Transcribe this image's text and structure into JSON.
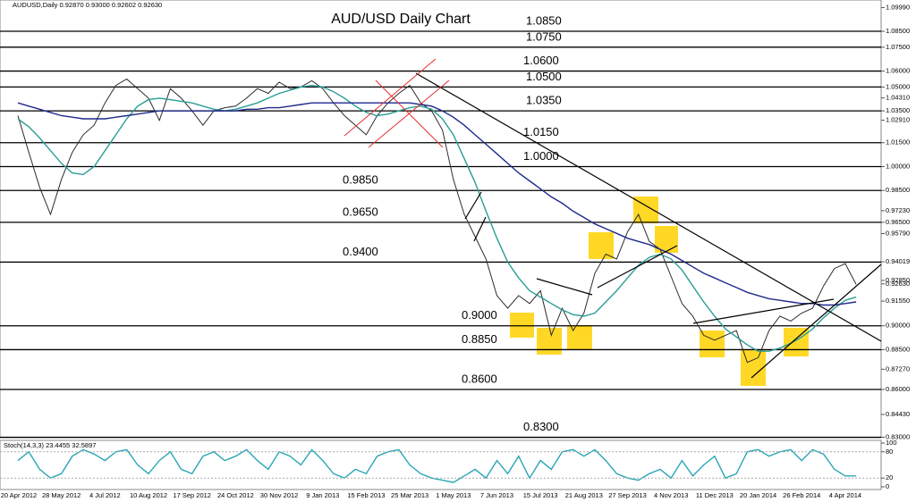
{
  "chart_data": [
    {
      "type": "line",
      "header": "AUDUSD,Daily 0.92870 0.93000 0.92602 0.92630",
      "title": "AUD/USD Daily Chart",
      "categories": [
        "20 Apr 2012",
        null,
        null,
        null,
        "28 May 2012",
        null,
        null,
        null,
        "4 Jul 2012",
        null,
        null,
        null,
        "10 Aug 2012",
        null,
        null,
        null,
        "17 Sep 2012",
        null,
        null,
        null,
        "24 Oct 2012",
        null,
        null,
        null,
        "30 Nov 2012",
        null,
        null,
        null,
        "9 Jan 2013",
        null,
        null,
        null,
        "15 Feb 2013",
        null,
        null,
        null,
        "25 Mar 2013",
        null,
        null,
        null,
        "1 May 2013",
        null,
        null,
        null,
        "7 Jun 2013",
        null,
        null,
        null,
        "15 Jul 2013",
        null,
        null,
        null,
        "21 Aug 2013",
        null,
        null,
        null,
        "27 Sep 2013",
        null,
        null,
        null,
        "4 Nov 2013",
        null,
        null,
        null,
        "11 Dec 2013",
        null,
        null,
        null,
        "20 Jan 2014",
        null,
        null,
        null,
        "26 Feb 2014",
        null,
        null,
        null,
        "4 Apr 2014",
        null
      ],
      "series": [
        {
          "color": "#2b2b2b",
          "values": [
            1.032,
            1.009,
            0.987,
            0.97,
            0.992,
            1.009,
            1.02,
            1.026,
            1.04,
            1.051,
            1.055,
            1.049,
            1.043,
            1.029,
            1.049,
            1.043,
            1.035,
            1.026,
            1.035,
            1.037,
            1.038,
            1.043,
            1.049,
            1.046,
            1.053,
            1.049,
            1.05,
            1.054,
            1.049,
            1.04,
            1.032,
            1.026,
            1.02,
            1.032,
            1.04,
            1.046,
            1.051,
            1.04,
            1.035,
            1.023,
            0.992,
            0.97,
            0.956,
            0.942,
            0.919,
            0.911,
            0.919,
            0.914,
            0.922,
            0.894,
            0.911,
            0.897,
            0.908,
            0.933,
            0.945,
            0.942,
            0.959,
            0.97,
            0.953,
            0.948,
            0.931,
            0.914,
            0.906,
            0.894,
            0.891,
            0.894,
            0.897,
            0.877,
            0.88,
            0.897,
            0.906,
            0.903,
            0.908,
            0.911,
            0.925,
            0.936,
            0.939,
            0.926
          ]
        },
        {
          "color": "#2a9d96",
          "values": [
            1.03,
            1.025,
            1.018,
            1.01,
            1.002,
            0.996,
            0.995,
            1.0,
            1.01,
            1.02,
            1.03,
            1.038,
            1.042,
            1.043,
            1.042,
            1.041,
            1.04,
            1.038,
            1.036,
            1.035,
            1.036,
            1.038,
            1.04,
            1.043,
            1.046,
            1.048,
            1.05,
            1.051,
            1.05,
            1.047,
            1.043,
            1.038,
            1.034,
            1.032,
            1.033,
            1.035,
            1.037,
            1.038,
            1.036,
            1.03,
            1.02,
            1.005,
            0.99,
            0.972,
            0.955,
            0.94,
            0.93,
            0.922,
            0.918,
            0.914,
            0.91,
            0.907,
            0.906,
            0.908,
            0.915,
            0.922,
            0.93,
            0.938,
            0.943,
            0.945,
            0.942,
            0.935,
            0.925,
            0.915,
            0.906,
            0.898,
            0.893,
            0.888,
            0.884,
            0.884,
            0.886,
            0.889,
            0.893,
            0.898,
            0.905,
            0.911,
            0.916,
            0.918
          ]
        },
        {
          "color": "#1f2a8c",
          "values": [
            1.04,
            1.038,
            1.036,
            1.034,
            1.032,
            1.031,
            1.03,
            1.03,
            1.03,
            1.031,
            1.032,
            1.033,
            1.034,
            1.035,
            1.035,
            1.035,
            1.035,
            1.035,
            1.035,
            1.035,
            1.035,
            1.036,
            1.036,
            1.037,
            1.037,
            1.038,
            1.039,
            1.04,
            1.04,
            1.04,
            1.04,
            1.04,
            1.04,
            1.04,
            1.04,
            1.04,
            1.04,
            1.039,
            1.038,
            1.035,
            1.031,
            1.026,
            1.02,
            1.014,
            1.008,
            1.002,
            0.996,
            0.991,
            0.986,
            0.981,
            0.977,
            0.972,
            0.968,
            0.964,
            0.961,
            0.958,
            0.955,
            0.953,
            0.951,
            0.948,
            0.945,
            0.941,
            0.937,
            0.933,
            0.93,
            0.927,
            0.924,
            0.921,
            0.919,
            0.917,
            0.916,
            0.915,
            0.914,
            0.914,
            0.913,
            0.913,
            0.914,
            0.915
          ]
        }
      ],
      "levels": [
        {
          "value": 1.085,
          "label": "1.0850"
        },
        {
          "value": 1.075,
          "label": "1.0750"
        },
        {
          "value": 1.06,
          "label": "1.0600"
        },
        {
          "value": 1.05,
          "label": "1.0500"
        },
        {
          "value": 1.035,
          "label": "1.0350"
        },
        {
          "value": 1.015,
          "label": "1.0150"
        },
        {
          "value": 1.0,
          "label": "1.0000"
        },
        {
          "value": 0.985,
          "label": "0.9850"
        },
        {
          "value": 0.965,
          "label": "0.9650"
        },
        {
          "value": 0.94,
          "label": "0.9400"
        },
        {
          "value": 0.9,
          "label": "0.9000"
        },
        {
          "value": 0.885,
          "label": "0.8850"
        },
        {
          "value": 0.86,
          "label": "0.8600"
        },
        {
          "value": 0.83,
          "label": "0.8300"
        }
      ],
      "ylim": [
        0.8297,
        1.1024
      ],
      "yticks": [
        {
          "value": 1.0999,
          "label": "1.09990"
        },
        {
          "value": 1.085,
          "label": "1.08500"
        },
        {
          "value": 1.075,
          "label": "1.07500"
        },
        {
          "value": 1.06,
          "label": "1.06000"
        },
        {
          "value": 1.05,
          "label": "1.05000"
        },
        {
          "value": 1.0431,
          "label": "1.04310"
        },
        {
          "value": 1.035,
          "label": "1.03500"
        },
        {
          "value": 1.0291,
          "label": "1.02910"
        },
        {
          "value": 1.015,
          "label": "1.01500"
        },
        {
          "value": 1.0,
          "label": "1.00000"
        },
        {
          "value": 0.985,
          "label": "0.98500"
        },
        {
          "value": 0.9723,
          "label": "0.97230"
        },
        {
          "value": 0.965,
          "label": "0.96500"
        },
        {
          "value": 0.9579,
          "label": "0.95790"
        },
        {
          "value": 0.94019,
          "label": "0.94019"
        },
        {
          "value": 0.9285,
          "label": "0.92850"
        },
        {
          "value": 0.9263,
          "label": "0.92630"
        },
        {
          "value": 0.9155,
          "label": "0.91550"
        },
        {
          "value": 0.9,
          "label": "0.90000"
        },
        {
          "value": 0.885,
          "label": "0.88500"
        },
        {
          "value": 0.8727,
          "label": "0.87270"
        },
        {
          "value": 0.86,
          "label": "0.86000"
        },
        {
          "value": 0.8443,
          "label": "0.84430"
        },
        {
          "value": 0.83,
          "label": "0.83000"
        }
      ]
    },
    {
      "type": "line",
      "title": "Stoch(14,3,3) 23.4455 32.5897",
      "series": [
        {
          "color": "#2aa7b5",
          "values": [
            60,
            80,
            40,
            20,
            30,
            70,
            85,
            75,
            60,
            80,
            85,
            50,
            30,
            60,
            80,
            40,
            30,
            70,
            80,
            60,
            70,
            85,
            60,
            40,
            80,
            70,
            50,
            85,
            60,
            30,
            20,
            40,
            30,
            70,
            80,
            85,
            50,
            30,
            20,
            15,
            10,
            25,
            40,
            20,
            60,
            30,
            70,
            20,
            60,
            40,
            80,
            85,
            70,
            85,
            60,
            30,
            20,
            15,
            30,
            40,
            20,
            60,
            25,
            50,
            70,
            20,
            30,
            80,
            85,
            70,
            80,
            85,
            60,
            85,
            75,
            40,
            25,
            25
          ]
        }
      ],
      "ylim": [
        0,
        100
      ],
      "yticks": [
        100,
        80,
        20,
        0
      ]
    }
  ]
}
